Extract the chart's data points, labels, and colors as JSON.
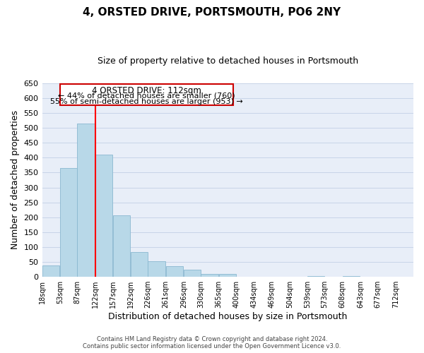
{
  "title": "4, ORSTED DRIVE, PORTSMOUTH, PO6 2NY",
  "subtitle": "Size of property relative to detached houses in Portsmouth",
  "xlabel": "Distribution of detached houses by size in Portsmouth",
  "ylabel": "Number of detached properties",
  "bar_values": [
    38,
    365,
    515,
    410,
    207,
    83,
    53,
    37,
    25,
    10,
    10,
    0,
    0,
    0,
    0,
    3,
    0,
    3,
    0,
    0,
    0
  ],
  "bar_left_edges": [
    18,
    53,
    87,
    122,
    157,
    192,
    226,
    261,
    296,
    330,
    365,
    400,
    434,
    469,
    504,
    539,
    573,
    608,
    643,
    677,
    712
  ],
  "bar_widths": [
    35,
    34,
    35,
    35,
    35,
    34,
    35,
    35,
    34,
    35,
    35,
    34,
    35,
    35,
    35,
    34,
    35,
    35,
    34,
    35,
    35
  ],
  "tick_labels": [
    "18sqm",
    "53sqm",
    "87sqm",
    "122sqm",
    "157sqm",
    "192sqm",
    "226sqm",
    "261sqm",
    "296sqm",
    "330sqm",
    "365sqm",
    "400sqm",
    "434sqm",
    "469sqm",
    "504sqm",
    "539sqm",
    "573sqm",
    "608sqm",
    "643sqm",
    "677sqm",
    "712sqm"
  ],
  "bar_color": "#b8d8e8",
  "bar_edgecolor": "#8ab8d0",
  "redline_x": 122,
  "ylim": [
    0,
    650
  ],
  "yticks": [
    0,
    50,
    100,
    150,
    200,
    250,
    300,
    350,
    400,
    450,
    500,
    550,
    600,
    650
  ],
  "annotation_box_title": "4 ORSTED DRIVE: 112sqm",
  "annotation_line1": "← 44% of detached houses are smaller (760)",
  "annotation_line2": "55% of semi-detached houses are larger (953) →",
  "annotation_box_color": "#ffffff",
  "annotation_box_edgecolor": "#cc0000",
  "title_fontsize": 11,
  "subtitle_fontsize": 9,
  "xlabel_fontsize": 9,
  "ylabel_fontsize": 9,
  "footer_line1": "Contains HM Land Registry data © Crown copyright and database right 2024.",
  "footer_line2": "Contains public sector information licensed under the Open Government Licence v3.0.",
  "background_color": "#ffffff",
  "axes_facecolor": "#e8eef8",
  "grid_color": "#c8d4e8"
}
